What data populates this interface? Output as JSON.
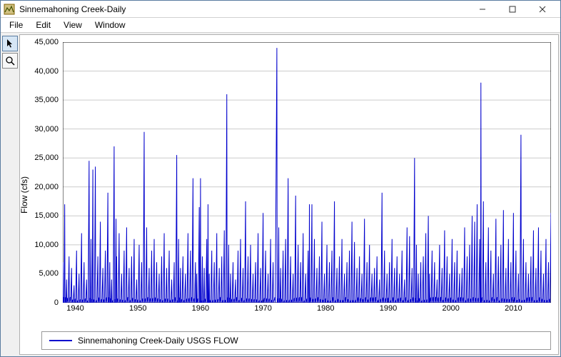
{
  "window": {
    "title": "Sinnemahoning Creek-Daily",
    "minimize": "minimize",
    "maximize": "maximize",
    "close": "close"
  },
  "menu": {
    "file": "File",
    "edit": "Edit",
    "view": "View",
    "window": "Window"
  },
  "tools": {
    "pointer": "pointer",
    "zoom": "zoom"
  },
  "chart": {
    "type": "line-timeseries",
    "y_label": "Flow (cfs)",
    "y_min": 0,
    "y_max": 45000,
    "y_tick_step": 5000,
    "y_ticks": [
      0,
      5000,
      10000,
      15000,
      20000,
      25000,
      30000,
      35000,
      40000,
      45000
    ],
    "y_tick_labels": [
      "0",
      "5,000",
      "10,000",
      "15,000",
      "20,000",
      "25,000",
      "30,000",
      "35,000",
      "40,000",
      "45,000"
    ],
    "x_min": 1938,
    "x_max": 2016,
    "x_ticks": [
      1940,
      1950,
      1960,
      1970,
      1980,
      1990,
      2000,
      2010
    ],
    "x_tick_labels": [
      "1940",
      "1950",
      "1960",
      "1970",
      "1980",
      "1990",
      "2000",
      "2010"
    ],
    "legend_label": "Sinnemahoning Creek-Daily USGS FLOW",
    "line_color": "#0000cd",
    "bg_color": "#ffffff",
    "grid_color": "#cccccc",
    "axis_color": "#000000",
    "tick_fontsize": 11,
    "label_fontsize": 12,
    "peaks": [
      [
        1938.0,
        7000
      ],
      [
        1938.3,
        17000
      ],
      [
        1938.6,
        4000
      ],
      [
        1939.0,
        8000
      ],
      [
        1939.4,
        6000
      ],
      [
        1939.8,
        3000
      ],
      [
        1940.2,
        9000
      ],
      [
        1940.6,
        5000
      ],
      [
        1941.0,
        12000
      ],
      [
        1941.4,
        7000
      ],
      [
        1941.8,
        4000
      ],
      [
        1942.2,
        24500
      ],
      [
        1942.5,
        11000
      ],
      [
        1942.8,
        23000
      ],
      [
        1943.2,
        23500
      ],
      [
        1943.6,
        8000
      ],
      [
        1944.0,
        14000
      ],
      [
        1944.4,
        6000
      ],
      [
        1944.8,
        9000
      ],
      [
        1945.2,
        19000
      ],
      [
        1945.5,
        7000
      ],
      [
        1945.8,
        4000
      ],
      [
        1946.2,
        27000
      ],
      [
        1946.5,
        14500
      ],
      [
        1946.6,
        8000
      ],
      [
        1947.0,
        12000
      ],
      [
        1947.4,
        5000
      ],
      [
        1947.8,
        9000
      ],
      [
        1948.2,
        13000
      ],
      [
        1948.6,
        6000
      ],
      [
        1949.0,
        8000
      ],
      [
        1949.4,
        11000
      ],
      [
        1949.8,
        4000
      ],
      [
        1950.2,
        10000
      ],
      [
        1950.6,
        7000
      ],
      [
        1951.0,
        29500
      ],
      [
        1951.4,
        13000
      ],
      [
        1951.8,
        6000
      ],
      [
        1952.2,
        9000
      ],
      [
        1952.6,
        11000
      ],
      [
        1953.0,
        7000
      ],
      [
        1953.4,
        5000
      ],
      [
        1953.8,
        8000
      ],
      [
        1954.2,
        12000
      ],
      [
        1954.6,
        6000
      ],
      [
        1955.0,
        9000
      ],
      [
        1955.4,
        4000
      ],
      [
        1955.8,
        7000
      ],
      [
        1956.2,
        25500
      ],
      [
        1956.5,
        11000
      ],
      [
        1956.8,
        6000
      ],
      [
        1957.2,
        8000
      ],
      [
        1957.6,
        5000
      ],
      [
        1958.0,
        12000
      ],
      [
        1958.4,
        9000
      ],
      [
        1958.8,
        21500
      ],
      [
        1959.2,
        7000
      ],
      [
        1959.4,
        5000
      ],
      [
        1959.8,
        16500
      ],
      [
        1960.0,
        21500
      ],
      [
        1960.3,
        8000
      ],
      [
        1960.6,
        6000
      ],
      [
        1961.0,
        11000
      ],
      [
        1961.2,
        17000
      ],
      [
        1961.4,
        5000
      ],
      [
        1961.8,
        9000
      ],
      [
        1962.2,
        7000
      ],
      [
        1962.6,
        12000
      ],
      [
        1963.0,
        6000
      ],
      [
        1963.4,
        8000
      ],
      [
        1963.8,
        12500
      ],
      [
        1964.2,
        36000
      ],
      [
        1964.5,
        10000
      ],
      [
        1964.8,
        5000
      ],
      [
        1965.2,
        7000
      ],
      [
        1965.6,
        4000
      ],
      [
        1966.0,
        9000
      ],
      [
        1966.4,
        11000
      ],
      [
        1966.8,
        6000
      ],
      [
        1967.2,
        17500
      ],
      [
        1967.6,
        8000
      ],
      [
        1968.0,
        10000
      ],
      [
        1968.4,
        5000
      ],
      [
        1968.8,
        7000
      ],
      [
        1969.2,
        12000
      ],
      [
        1969.6,
        6000
      ],
      [
        1970.0,
        15500
      ],
      [
        1970.4,
        9000
      ],
      [
        1970.8,
        5000
      ],
      [
        1971.2,
        11000
      ],
      [
        1971.6,
        7000
      ],
      [
        1972.2,
        44000
      ],
      [
        1972.5,
        13000
      ],
      [
        1972.8,
        6000
      ],
      [
        1973.2,
        9000
      ],
      [
        1973.6,
        11000
      ],
      [
        1974.0,
        21500
      ],
      [
        1974.4,
        8000
      ],
      [
        1974.8,
        5000
      ],
      [
        1975.2,
        18500
      ],
      [
        1975.6,
        10000
      ],
      [
        1976.0,
        7000
      ],
      [
        1976.4,
        12000
      ],
      [
        1976.8,
        5000
      ],
      [
        1977.2,
        9000
      ],
      [
        1977.4,
        17000
      ],
      [
        1977.8,
        17000
      ],
      [
        1978.2,
        11000
      ],
      [
        1978.6,
        6000
      ],
      [
        1979.0,
        8000
      ],
      [
        1979.4,
        14000
      ],
      [
        1979.8,
        5000
      ],
      [
        1980.2,
        10000
      ],
      [
        1980.6,
        7000
      ],
      [
        1981.0,
        9000
      ],
      [
        1981.4,
        17500
      ],
      [
        1981.8,
        6000
      ],
      [
        1982.2,
        8000
      ],
      [
        1982.6,
        11000
      ],
      [
        1983.0,
        5000
      ],
      [
        1983.4,
        7000
      ],
      [
        1983.8,
        9000
      ],
      [
        1984.2,
        14000
      ],
      [
        1984.6,
        10500
      ],
      [
        1985.0,
        6000
      ],
      [
        1985.4,
        8000
      ],
      [
        1985.8,
        5000
      ],
      [
        1986.2,
        14500
      ],
      [
        1986.6,
        7000
      ],
      [
        1987.0,
        10000
      ],
      [
        1987.4,
        5000
      ],
      [
        1987.8,
        6000
      ],
      [
        1988.2,
        8000
      ],
      [
        1988.6,
        4000
      ],
      [
        1989.0,
        19000
      ],
      [
        1989.4,
        9000
      ],
      [
        1989.8,
        5000
      ],
      [
        1990.2,
        7000
      ],
      [
        1990.6,
        11000
      ],
      [
        1991.0,
        6000
      ],
      [
        1991.4,
        8000
      ],
      [
        1991.8,
        5000
      ],
      [
        1992.2,
        9000
      ],
      [
        1992.6,
        4000
      ],
      [
        1993.0,
        13000
      ],
      [
        1993.4,
        11500
      ],
      [
        1993.8,
        6000
      ],
      [
        1994.2,
        25000
      ],
      [
        1994.5,
        10000
      ],
      [
        1994.8,
        5000
      ],
      [
        1995.2,
        7000
      ],
      [
        1995.6,
        8000
      ],
      [
        1996.0,
        12000
      ],
      [
        1996.4,
        15000
      ],
      [
        1996.6,
        5000
      ],
      [
        1997.0,
        9000
      ],
      [
        1997.4,
        7000
      ],
      [
        1997.8,
        4000
      ],
      [
        1998.2,
        10000
      ],
      [
        1998.6,
        6000
      ],
      [
        1999.0,
        12500
      ],
      [
        1999.4,
        8000
      ],
      [
        1999.8,
        5000
      ],
      [
        2000.2,
        11000
      ],
      [
        2000.6,
        7000
      ],
      [
        2001.0,
        9000
      ],
      [
        2001.4,
        5000
      ],
      [
        2001.8,
        6000
      ],
      [
        2002.2,
        13000
      ],
      [
        2002.6,
        8000
      ],
      [
        2003.0,
        10000
      ],
      [
        2003.4,
        15000
      ],
      [
        2003.8,
        14000
      ],
      [
        2004.2,
        17000
      ],
      [
        2004.6,
        11000
      ],
      [
        2004.8,
        38000
      ],
      [
        2005.2,
        17500
      ],
      [
        2005.6,
        7000
      ],
      [
        2006.0,
        13000
      ],
      [
        2006.4,
        9000
      ],
      [
        2006.8,
        5000
      ],
      [
        2007.2,
        14500
      ],
      [
        2007.6,
        8000
      ],
      [
        2008.0,
        10000
      ],
      [
        2008.4,
        16000
      ],
      [
        2008.8,
        6000
      ],
      [
        2009.2,
        11000
      ],
      [
        2009.6,
        7000
      ],
      [
        2010.0,
        15500
      ],
      [
        2010.4,
        9000
      ],
      [
        2010.8,
        5000
      ],
      [
        2011.2,
        29000
      ],
      [
        2011.6,
        11000
      ],
      [
        2012.0,
        7000
      ],
      [
        2012.4,
        5000
      ],
      [
        2012.8,
        8000
      ],
      [
        2013.2,
        12500
      ],
      [
        2013.6,
        6000
      ],
      [
        2014.0,
        13000
      ],
      [
        2014.4,
        9000
      ],
      [
        2014.8,
        5000
      ],
      [
        2015.2,
        11000
      ],
      [
        2015.6,
        7000
      ],
      [
        2016.0,
        15500
      ]
    ]
  }
}
